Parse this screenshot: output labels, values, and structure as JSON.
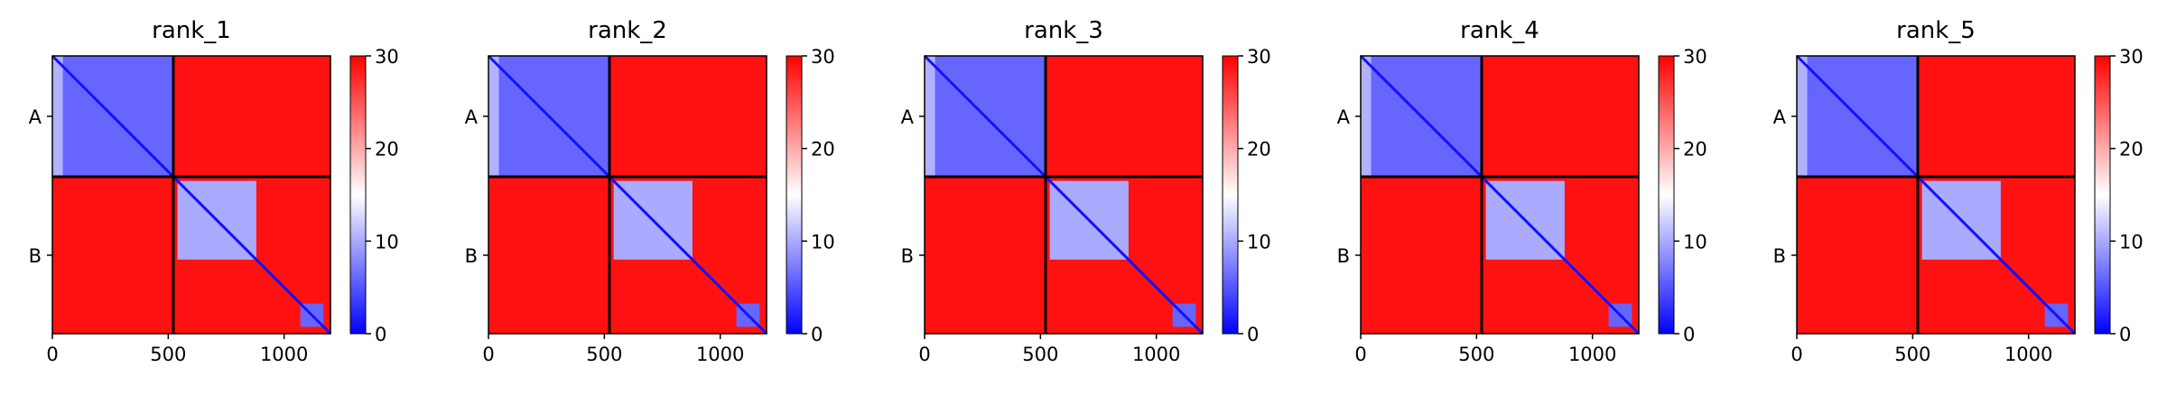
{
  "chart_data": [
    {
      "type": "heatmap",
      "title": "rank_1",
      "chains": [
        {
          "label": "A",
          "start": 0,
          "end": 522
        },
        {
          "label": "B",
          "start": 522,
          "end": 1200
        }
      ],
      "xlim": [
        0,
        1200
      ],
      "xticks": [
        0,
        500,
        1000
      ],
      "colorbar": {
        "min": 0,
        "max": 30,
        "ticks": [
          0,
          10,
          20,
          30
        ],
        "colors": [
          "#0000ff",
          "#ffffff",
          "#ff0000"
        ]
      },
      "matrix_description": "pairwise predicted aligned error; low (blue) within domains, high (red) between chains"
    },
    {
      "type": "heatmap",
      "title": "rank_2",
      "chains": [
        {
          "label": "A",
          "start": 0,
          "end": 522
        },
        {
          "label": "B",
          "start": 522,
          "end": 1200
        }
      ],
      "xlim": [
        0,
        1200
      ],
      "xticks": [
        0,
        500,
        1000
      ],
      "colorbar": {
        "min": 0,
        "max": 30,
        "ticks": [
          0,
          10,
          20,
          30
        ],
        "colors": [
          "#0000ff",
          "#ffffff",
          "#ff0000"
        ]
      }
    },
    {
      "type": "heatmap",
      "title": "rank_3",
      "chains": [
        {
          "label": "A",
          "start": 0,
          "end": 522
        },
        {
          "label": "B",
          "start": 522,
          "end": 1200
        }
      ],
      "xlim": [
        0,
        1200
      ],
      "xticks": [
        0,
        500,
        1000
      ],
      "colorbar": {
        "min": 0,
        "max": 30,
        "ticks": [
          0,
          10,
          20,
          30
        ],
        "colors": [
          "#0000ff",
          "#ffffff",
          "#ff0000"
        ]
      }
    },
    {
      "type": "heatmap",
      "title": "rank_4",
      "chains": [
        {
          "label": "A",
          "start": 0,
          "end": 522
        },
        {
          "label": "B",
          "start": 522,
          "end": 1200
        }
      ],
      "xlim": [
        0,
        1200
      ],
      "xticks": [
        0,
        500,
        1000
      ],
      "colorbar": {
        "min": 0,
        "max": 30,
        "ticks": [
          0,
          10,
          20,
          30
        ],
        "colors": [
          "#0000ff",
          "#ffffff",
          "#ff0000"
        ]
      }
    },
    {
      "type": "heatmap",
      "title": "rank_5",
      "chains": [
        {
          "label": "A",
          "start": 0,
          "end": 522
        },
        {
          "label": "B",
          "start": 522,
          "end": 1200
        }
      ],
      "xlim": [
        0,
        1200
      ],
      "xticks": [
        0,
        500,
        1000
      ],
      "colorbar": {
        "min": 0,
        "max": 30,
        "ticks": [
          0,
          10,
          20,
          30
        ],
        "colors": [
          "#0000ff",
          "#ffffff",
          "#ff0000"
        ]
      }
    }
  ],
  "blocks": {
    "A_A": [
      {
        "from": 0,
        "to": 522,
        "value": 6
      },
      {
        "from": 0,
        "to": 45,
        "value": 14
      }
    ],
    "B_B": [
      {
        "from": 540,
        "to": 880,
        "value": 10
      },
      {
        "from": 1070,
        "to": 1170,
        "value": 6
      }
    ],
    "off_diag": 29
  }
}
